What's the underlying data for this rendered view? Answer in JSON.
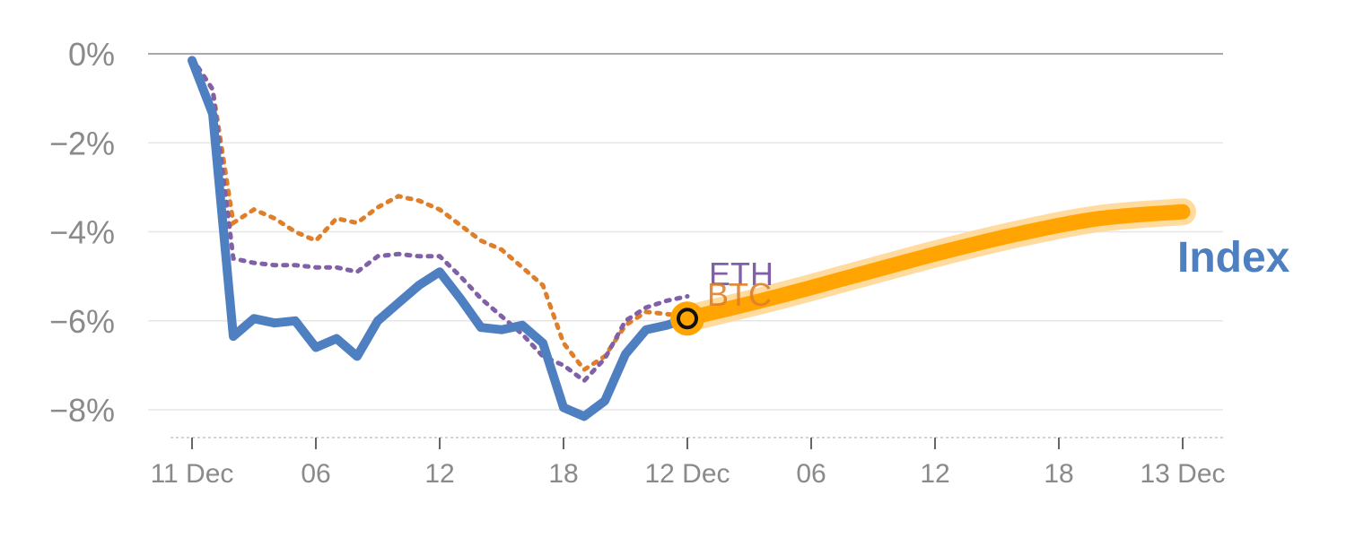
{
  "chart_data": {
    "type": "line",
    "x_tick_labels": [
      "11 Dec",
      "06",
      "12",
      "18",
      "12 Dec",
      "06",
      "12",
      "18",
      "13 Dec"
    ],
    "x_tick_hours": [
      0,
      6,
      12,
      18,
      24,
      30,
      36,
      42,
      48
    ],
    "y_tick_labels": [
      "0%",
      "−2%",
      "−4%",
      "−6%",
      "−8%"
    ],
    "y_tick_values": [
      0,
      -2,
      -4,
      -6,
      -8
    ],
    "xlim": [
      -1,
      49
    ],
    "ylim": [
      -8.5,
      0
    ],
    "grid": true,
    "series": [
      {
        "name": "Index",
        "style": "solid",
        "color": "#4e7fc1",
        "x": [
          0,
          1,
          2,
          3,
          4,
          5,
          6,
          7,
          8,
          9,
          10,
          11,
          12,
          13,
          14,
          15,
          16,
          17,
          18,
          19,
          20,
          21,
          22,
          23,
          24
        ],
        "y": [
          -0.15,
          -1.35,
          -6.35,
          -5.95,
          -6.05,
          -6.0,
          -6.6,
          -6.4,
          -6.8,
          -6.0,
          -5.6,
          -5.2,
          -4.9,
          -5.5,
          -6.15,
          -6.2,
          -6.1,
          -6.5,
          -7.95,
          -8.15,
          -7.8,
          -6.75,
          -6.2,
          -6.1,
          -5.95
        ]
      },
      {
        "name": "BTC",
        "style": "dotted",
        "color": "#e07f2a",
        "x": [
          0,
          1,
          2,
          3,
          4,
          5,
          6,
          7,
          8,
          9,
          10,
          11,
          12,
          13,
          14,
          15,
          16,
          17,
          18,
          19,
          20,
          21,
          22,
          23,
          24
        ],
        "y": [
          -0.1,
          -0.8,
          -3.8,
          -3.5,
          -3.7,
          -4.0,
          -4.2,
          -3.7,
          -3.8,
          -3.45,
          -3.2,
          -3.3,
          -3.5,
          -3.85,
          -4.2,
          -4.4,
          -4.8,
          -5.2,
          -6.5,
          -7.1,
          -6.8,
          -6.1,
          -5.8,
          -5.85,
          -5.9
        ]
      },
      {
        "name": "ETH",
        "style": "dotted",
        "color": "#8060a6",
        "x": [
          0,
          1,
          2,
          3,
          4,
          5,
          6,
          7,
          8,
          9,
          10,
          11,
          12,
          13,
          14,
          15,
          16,
          17,
          18,
          19,
          20,
          21,
          22,
          23,
          24
        ],
        "y": [
          -0.1,
          -0.8,
          -4.6,
          -4.7,
          -4.75,
          -4.75,
          -4.8,
          -4.8,
          -4.9,
          -4.55,
          -4.5,
          -4.55,
          -4.55,
          -5.0,
          -5.5,
          -5.9,
          -6.3,
          -6.8,
          -7.0,
          -7.35,
          -6.85,
          -6.0,
          -5.7,
          -5.55,
          -5.45
        ]
      },
      {
        "name": "Index projection",
        "style": "solid-thick",
        "color": "#ffa400",
        "x": [
          24,
          28,
          32,
          36,
          40,
          44,
          48
        ],
        "y": [
          -5.95,
          -5.5,
          -5.0,
          -4.5,
          -4.05,
          -3.7,
          -3.55
        ]
      }
    ],
    "labels": {
      "eth": "ETH",
      "btc": "BTC",
      "index": "Index"
    },
    "marker": {
      "x": 24,
      "y": -5.95
    }
  }
}
